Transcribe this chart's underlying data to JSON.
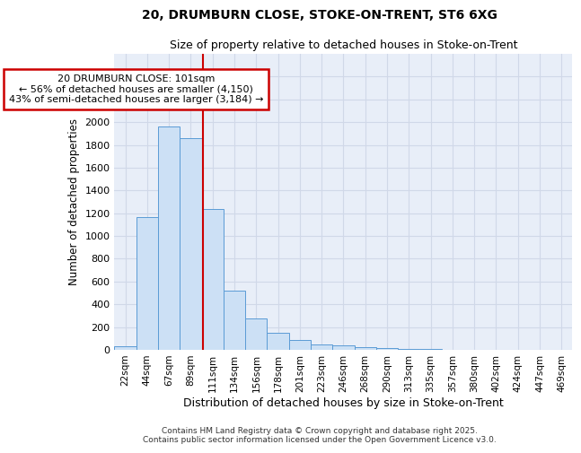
{
  "title_line1": "20, DRUMBURN CLOSE, STOKE-ON-TRENT, ST6 6XG",
  "title_line2": "Size of property relative to detached houses in Stoke-on-Trent",
  "xlabel": "Distribution of detached houses by size in Stoke-on-Trent",
  "ylabel": "Number of detached properties",
  "bin_labels": [
    "22sqm",
    "44sqm",
    "67sqm",
    "89sqm",
    "111sqm",
    "134sqm",
    "156sqm",
    "178sqm",
    "201sqm",
    "223sqm",
    "246sqm",
    "268sqm",
    "290sqm",
    "313sqm",
    "335sqm",
    "357sqm",
    "380sqm",
    "402sqm",
    "424sqm",
    "447sqm",
    "469sqm"
  ],
  "bar_values": [
    28,
    1170,
    1960,
    1860,
    1240,
    520,
    275,
    150,
    90,
    45,
    38,
    22,
    12,
    8,
    5,
    3,
    2,
    2,
    1,
    1,
    1
  ],
  "bar_color": "#cce0f5",
  "bar_edge_color": "#5b9bd5",
  "vline_color": "#cc0000",
  "annotation_text": "20 DRUMBURN CLOSE: 101sqm\n← 56% of detached houses are smaller (4,150)\n43% of semi-detached houses are larger (3,184) →",
  "annotation_box_color": "#ffffff",
  "annotation_box_edge": "#cc0000",
  "ylim": [
    0,
    2600
  ],
  "yticks": [
    0,
    200,
    400,
    600,
    800,
    1000,
    1200,
    1400,
    1600,
    1800,
    2000,
    2200,
    2400
  ],
  "grid_color": "#d0d8e8",
  "bg_color": "#e8eef8",
  "fig_bg_color": "#ffffff",
  "footer_line1": "Contains HM Land Registry data © Crown copyright and database right 2025.",
  "footer_line2": "Contains public sector information licensed under the Open Government Licence v3.0."
}
